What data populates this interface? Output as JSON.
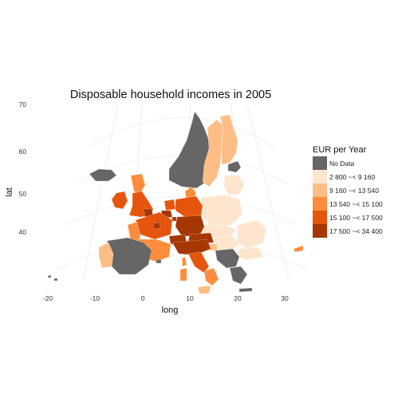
{
  "title": "Disposable household incomes in 2005",
  "axes": {
    "x_label": "long",
    "y_label": "lat",
    "x_ticks": [
      "-20",
      "-10",
      "0",
      "10",
      "20",
      "30"
    ],
    "y_ticks": [
      "70",
      "60",
      "50",
      "40"
    ]
  },
  "legend": {
    "title": "EUR per Year",
    "items": [
      {
        "label": "No Data",
        "color": "#666666"
      },
      {
        "label": "2 800 ~< 9 160",
        "color": "#fee6ce"
      },
      {
        "label": "9 160 ~< 13 540",
        "color": "#fdbe85"
      },
      {
        "label": "13 540 ~< 15 100",
        "color": "#fd8d3c"
      },
      {
        "label": "15 100 ~< 17 500",
        "color": "#e6550d"
      },
      {
        "label": "17 500 ~< 34 400",
        "color": "#a63603"
      }
    ]
  }
}
